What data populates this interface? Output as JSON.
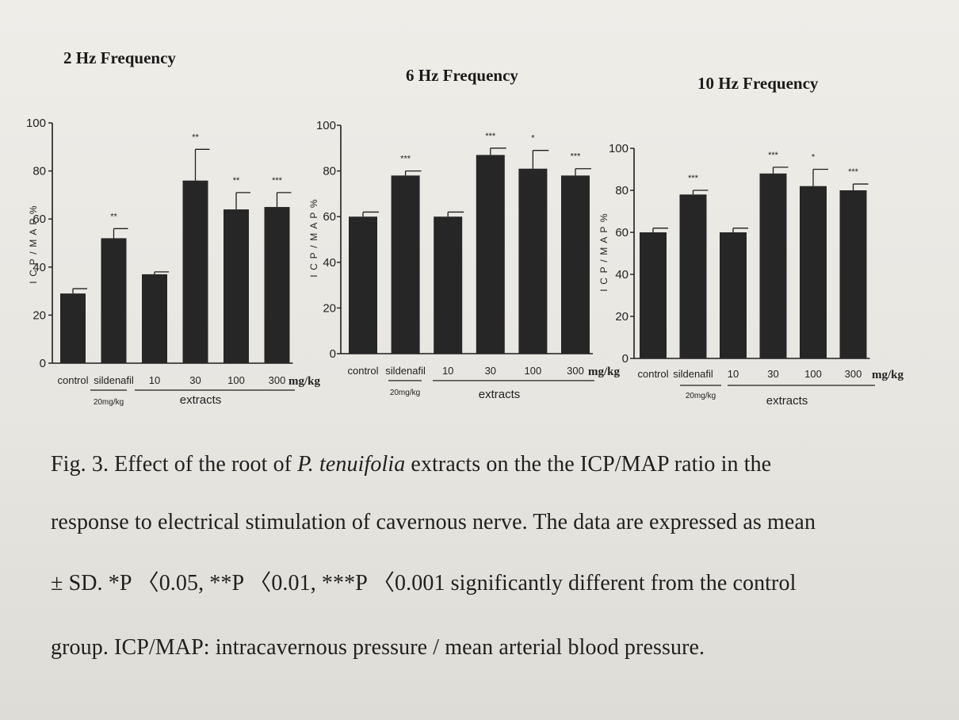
{
  "chart_data": [
    {
      "type": "bar",
      "title": "2 Hz Frequency",
      "ylabel": "I C P / M A P %",
      "ylim": [
        0,
        100
      ],
      "yticks": [
        "0",
        "20",
        "40",
        "60",
        "80",
        "100"
      ],
      "categories": [
        "control",
        "sildenafil",
        "10",
        "30",
        "100",
        "300"
      ],
      "values": [
        29,
        52,
        37,
        76,
        64,
        65
      ],
      "errors": [
        2,
        4,
        1,
        13,
        7,
        6
      ],
      "significance": [
        "",
        "**",
        "",
        "**",
        "**",
        "***"
      ],
      "unit": "mg/kg",
      "sublabel": "20mg/kg",
      "group_label": "extracts"
    },
    {
      "type": "bar",
      "title": "6 Hz Frequency",
      "ylabel": "I C P / M A P %",
      "ylim": [
        0,
        100
      ],
      "yticks": [
        "0",
        "20",
        "40",
        "60",
        "80",
        "100"
      ],
      "categories": [
        "control",
        "sildenafil",
        "10",
        "30",
        "100",
        "300"
      ],
      "values": [
        60,
        78,
        60,
        87,
        81,
        78
      ],
      "errors": [
        2,
        2,
        2,
        3,
        8,
        3
      ],
      "significance": [
        "",
        "***",
        "",
        "***",
        "*",
        "***"
      ],
      "unit": "mg/kg",
      "sublabel": "20mg/kg",
      "group_label": "extracts"
    },
    {
      "type": "bar",
      "title": "10 Hz Frequency",
      "ylabel": "I C P / M A P %",
      "ylim": [
        0,
        100
      ],
      "yticks": [
        "0",
        "20",
        "40",
        "60",
        "80",
        "100"
      ],
      "categories": [
        "control",
        "sildenafil",
        "10",
        "30",
        "100",
        "300"
      ],
      "values": [
        60,
        78,
        60,
        88,
        82,
        80
      ],
      "errors": [
        2,
        2,
        2,
        3,
        8,
        3
      ],
      "significance": [
        "",
        "***",
        "",
        "***",
        "*",
        "***"
      ],
      "unit": "mg/kg",
      "sublabel": "20mg/kg",
      "group_label": "extracts"
    }
  ],
  "caption": {
    "line1_a": "Fig. 3. Effect of the root of ",
    "line1_species": "P. tenuifolia",
    "line1_b": " extracts on the the ICP/MAP ratio in the",
    "line2": "response to electrical stimulation of cavernous nerve. The data are expressed as mean",
    "line3": "± SD. *P 〈0.05, **P 〈0.01, ***P 〈0.001 significantly different from the control",
    "line4": "group. ICP/MAP: intracavernous pressure / mean arterial blood pressure."
  },
  "colors": {
    "bar": "#262626",
    "axis": "#1e1e1e",
    "paper": "#ebe9e4"
  }
}
